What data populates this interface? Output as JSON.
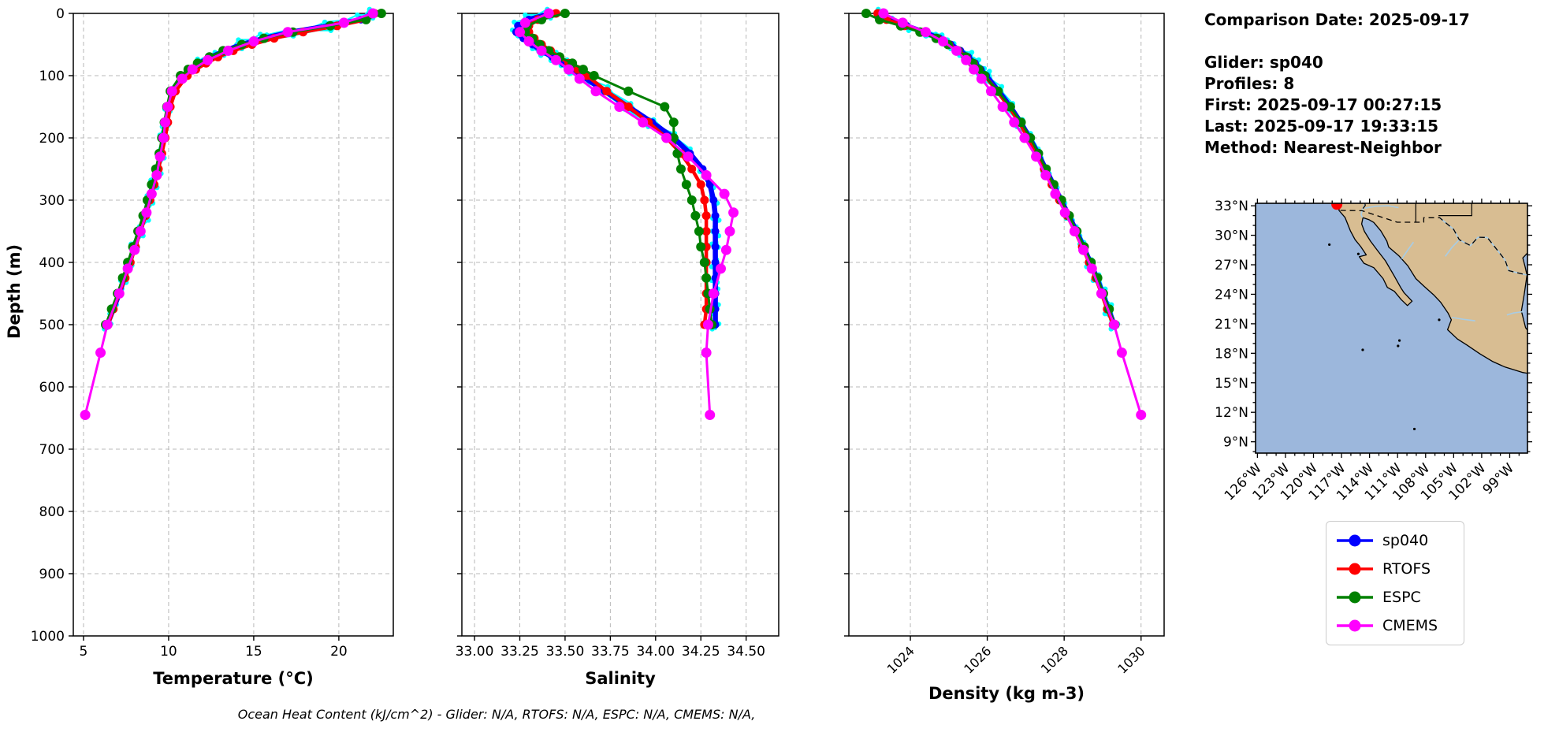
{
  "meta": {
    "title": "Comparison Date: 2025-09-17",
    "lines": [
      "Glider: sp040",
      "Profiles: 8",
      "First: 2025-09-17 00:27:15",
      "Last: 2025-09-17 19:33:15",
      "Method: Nearest-Neighbor"
    ]
  },
  "footnote": "Ocean Heat Content (kJ/cm^2) - Glider: N/A,  RTOFS: N/A,  ESPC: N/A,  CMEMS: N/A,",
  "legend": {
    "items": [
      {
        "label": "sp040",
        "color": "#0000ff"
      },
      {
        "label": "RTOFS",
        "color": "#ff0000"
      },
      {
        "label": "ESPC",
        "color": "#008000"
      },
      {
        "label": "CMEMS",
        "color": "#ff00ff"
      }
    ]
  },
  "chart_data": [
    {
      "type": "line",
      "id": "temperature",
      "xlabel": "Temperature (°C)",
      "ylabel": "Depth (m)",
      "xlim": [
        4.4,
        23.2
      ],
      "xticks": [
        5,
        10,
        15,
        20
      ],
      "xtick_labels": [
        "5",
        "10",
        "15",
        "20"
      ],
      "ylim": [
        0,
        1000
      ],
      "yticks": [
        0,
        100,
        200,
        300,
        400,
        500,
        600,
        700,
        800,
        900,
        1000
      ],
      "ytick_labels": [
        "0",
        "100",
        "200",
        "300",
        "400",
        "500",
        "600",
        "700",
        "800",
        "900",
        "1000"
      ],
      "show_ytick_labels": true,
      "rotate_xtick_labels": false,
      "grid": true,
      "series": [
        {
          "name": "glider raw profiles",
          "color": "#00ffff",
          "style": "raw",
          "same_as": "sp040",
          "in_legend": false
        },
        {
          "name": "sp040",
          "color": "#0000ff",
          "depths": [
            0,
            10,
            20,
            30,
            40,
            50,
            60,
            70,
            80,
            90,
            100,
            125,
            150,
            175,
            200,
            225,
            250,
            275,
            300,
            325,
            350,
            375,
            400,
            425,
            450,
            475,
            500
          ],
          "values": [
            22.0,
            21.3,
            19.4,
            17.2,
            15.6,
            14.3,
            13.3,
            12.5,
            11.8,
            11.3,
            10.85,
            10.2,
            10.0,
            9.85,
            9.7,
            9.55,
            9.35,
            9.1,
            8.85,
            8.6,
            8.3,
            8.0,
            7.7,
            7.4,
            7.1,
            6.75,
            6.4
          ]
        },
        {
          "name": "RTOFS",
          "color": "#ff0000",
          "depths": [
            0,
            10,
            20,
            30,
            40,
            50,
            60,
            70,
            80,
            90,
            100,
            125,
            150,
            175,
            200,
            225,
            250,
            275,
            300,
            325,
            350,
            375,
            400,
            425,
            450,
            475,
            500
          ],
          "values": [
            22.1,
            21.6,
            19.9,
            17.9,
            16.2,
            14.9,
            13.8,
            12.9,
            12.2,
            11.6,
            11.1,
            10.4,
            10.1,
            9.95,
            9.8,
            9.6,
            9.4,
            9.15,
            8.9,
            8.65,
            8.35,
            8.05,
            7.75,
            7.45,
            7.1,
            6.75,
            6.45
          ]
        },
        {
          "name": "ESPC",
          "color": "#008000",
          "depths": [
            0,
            10,
            20,
            30,
            40,
            50,
            60,
            70,
            80,
            90,
            100,
            125,
            150,
            175,
            200,
            225,
            250,
            275,
            300,
            325,
            350,
            375,
            400,
            425,
            450,
            475,
            500
          ],
          "values": [
            22.5,
            21.6,
            19.5,
            17.3,
            15.6,
            14.3,
            13.2,
            12.4,
            11.7,
            11.15,
            10.7,
            10.1,
            9.9,
            9.75,
            9.6,
            9.45,
            9.25,
            9.0,
            8.75,
            8.5,
            8.2,
            7.9,
            7.6,
            7.3,
            7.0,
            6.65,
            6.3
          ]
        },
        {
          "name": "CMEMS",
          "color": "#ff00ff",
          "depths": [
            0,
            15,
            30,
            45,
            60,
            75,
            90,
            105,
            125,
            150,
            175,
            200,
            230,
            260,
            290,
            320,
            350,
            380,
            410,
            450,
            500,
            545,
            645
          ],
          "values": [
            22.0,
            20.3,
            17.0,
            15.0,
            13.5,
            12.3,
            11.4,
            10.8,
            10.2,
            9.95,
            9.8,
            9.7,
            9.5,
            9.3,
            9.0,
            8.7,
            8.35,
            8.0,
            7.6,
            7.1,
            6.4,
            6.0,
            5.1
          ]
        }
      ]
    },
    {
      "type": "line",
      "id": "salinity",
      "xlabel": "Salinity",
      "xlim": [
        32.93,
        34.68
      ],
      "xticks": [
        33.0,
        33.25,
        33.5,
        33.75,
        34.0,
        34.25,
        34.5
      ],
      "xtick_labels": [
        "33.00",
        "33.25",
        "33.50",
        "33.75",
        "34.00",
        "34.25",
        "34.50"
      ],
      "ylim": [
        0,
        1000
      ],
      "yticks": [
        0,
        100,
        200,
        300,
        400,
        500,
        600,
        700,
        800,
        900,
        1000
      ],
      "show_ytick_labels": false,
      "rotate_xtick_labels": false,
      "grid": true,
      "series": [
        {
          "name": "glider raw profiles",
          "color": "#00ffff",
          "style": "raw",
          "same_as": "sp040",
          "in_legend": false
        },
        {
          "name": "sp040",
          "color": "#0000ff",
          "depths": [
            0,
            10,
            20,
            30,
            40,
            50,
            60,
            70,
            80,
            90,
            100,
            125,
            150,
            175,
            200,
            225,
            250,
            275,
            300,
            325,
            350,
            375,
            400,
            425,
            450,
            475,
            500
          ],
          "values": [
            33.42,
            33.3,
            33.24,
            33.23,
            33.27,
            33.32,
            33.37,
            33.43,
            33.49,
            33.54,
            33.59,
            33.72,
            33.85,
            33.98,
            34.1,
            34.19,
            34.26,
            34.3,
            34.32,
            34.33,
            34.33,
            34.33,
            34.33,
            34.33,
            34.33,
            34.33,
            34.33
          ]
        },
        {
          "name": "RTOFS",
          "color": "#ff0000",
          "depths": [
            0,
            10,
            20,
            30,
            40,
            50,
            60,
            70,
            80,
            90,
            100,
            125,
            150,
            175,
            200,
            225,
            250,
            275,
            300,
            325,
            350,
            375,
            400,
            425,
            450,
            475,
            500
          ],
          "values": [
            33.45,
            33.35,
            33.3,
            33.3,
            33.33,
            33.37,
            33.42,
            33.47,
            33.52,
            33.57,
            33.62,
            33.73,
            33.85,
            33.96,
            34.06,
            34.14,
            34.2,
            34.25,
            34.27,
            34.28,
            34.28,
            34.28,
            34.28,
            34.28,
            34.28,
            34.28,
            34.27
          ]
        },
        {
          "name": "ESPC",
          "color": "#008000",
          "depths": [
            0,
            10,
            20,
            30,
            40,
            50,
            60,
            70,
            80,
            90,
            100,
            125,
            150,
            175,
            200,
            225,
            250,
            275,
            300,
            325,
            350,
            375,
            400,
            425,
            450,
            475,
            500
          ],
          "values": [
            33.5,
            33.37,
            33.29,
            33.28,
            33.32,
            33.36,
            33.41,
            33.47,
            33.54,
            33.6,
            33.66,
            33.85,
            34.05,
            34.1,
            34.1,
            34.12,
            34.14,
            34.17,
            34.2,
            34.22,
            34.24,
            34.25,
            34.27,
            34.28,
            34.29,
            34.3,
            34.31
          ]
        },
        {
          "name": "CMEMS",
          "color": "#ff00ff",
          "depths": [
            0,
            15,
            30,
            45,
            60,
            75,
            90,
            105,
            125,
            150,
            175,
            200,
            230,
            260,
            290,
            320,
            350,
            380,
            410,
            450,
            500,
            545,
            645
          ],
          "values": [
            33.41,
            33.28,
            33.25,
            33.3,
            33.37,
            33.45,
            33.52,
            33.58,
            33.67,
            33.8,
            33.93,
            34.06,
            34.18,
            34.28,
            34.38,
            34.43,
            34.41,
            34.39,
            34.36,
            34.32,
            34.29,
            34.28,
            34.3
          ]
        }
      ]
    },
    {
      "type": "line",
      "id": "density",
      "xlabel": "Density (kg m-3)",
      "xlim": [
        1022.4,
        1030.6
      ],
      "xticks": [
        1024,
        1026,
        1028,
        1030
      ],
      "xtick_labels": [
        "1024",
        "1026",
        "1028",
        "1030"
      ],
      "ylim": [
        0,
        1000
      ],
      "yticks": [
        0,
        100,
        200,
        300,
        400,
        500,
        600,
        700,
        800,
        900,
        1000
      ],
      "show_ytick_labels": false,
      "rotate_xtick_labels": true,
      "grid": true,
      "series": [
        {
          "name": "glider raw profiles",
          "color": "#00ffff",
          "style": "raw",
          "same_as": "sp040",
          "in_legend": false
        },
        {
          "name": "sp040",
          "color": "#0000ff",
          "depths": [
            0,
            10,
            20,
            30,
            40,
            50,
            60,
            70,
            80,
            90,
            100,
            125,
            150,
            175,
            200,
            225,
            250,
            275,
            300,
            325,
            350,
            375,
            400,
            425,
            450,
            475,
            500
          ],
          "values": [
            1023.25,
            1023.45,
            1023.9,
            1024.35,
            1024.75,
            1025.05,
            1025.3,
            1025.5,
            1025.68,
            1025.83,
            1025.97,
            1026.3,
            1026.6,
            1026.87,
            1027.1,
            1027.32,
            1027.52,
            1027.72,
            1027.92,
            1028.12,
            1028.32,
            1028.5,
            1028.68,
            1028.85,
            1029.0,
            1029.15,
            1029.3
          ]
        },
        {
          "name": "RTOFS",
          "color": "#ff0000",
          "depths": [
            0,
            10,
            20,
            30,
            40,
            50,
            60,
            70,
            80,
            90,
            100,
            125,
            150,
            175,
            200,
            225,
            250,
            275,
            300,
            325,
            350,
            375,
            400,
            425,
            450,
            475,
            500
          ],
          "values": [
            1023.15,
            1023.38,
            1023.85,
            1024.3,
            1024.7,
            1025.0,
            1025.25,
            1025.46,
            1025.64,
            1025.79,
            1025.93,
            1026.26,
            1026.56,
            1026.83,
            1027.06,
            1027.28,
            1027.48,
            1027.68,
            1027.88,
            1028.08,
            1028.28,
            1028.47,
            1028.65,
            1028.82,
            1028.97,
            1029.12,
            1029.27
          ]
        },
        {
          "name": "ESPC",
          "color": "#008000",
          "depths": [
            0,
            10,
            20,
            30,
            40,
            50,
            60,
            70,
            80,
            90,
            100,
            125,
            150,
            175,
            200,
            225,
            250,
            275,
            300,
            325,
            350,
            375,
            400,
            425,
            450,
            475,
            500
          ],
          "values": [
            1022.85,
            1023.2,
            1023.75,
            1024.25,
            1024.67,
            1024.98,
            1025.23,
            1025.44,
            1025.62,
            1025.78,
            1025.93,
            1026.28,
            1026.6,
            1026.88,
            1027.12,
            1027.33,
            1027.53,
            1027.73,
            1027.93,
            1028.13,
            1028.33,
            1028.52,
            1028.7,
            1028.87,
            1029.02,
            1029.17,
            1029.32
          ]
        },
        {
          "name": "CMEMS",
          "color": "#ff00ff",
          "depths": [
            0,
            15,
            30,
            45,
            60,
            75,
            90,
            105,
            125,
            150,
            175,
            200,
            230,
            260,
            290,
            320,
            350,
            380,
            410,
            450,
            500,
            545,
            645
          ],
          "values": [
            1023.3,
            1023.8,
            1024.4,
            1024.85,
            1025.2,
            1025.45,
            1025.65,
            1025.85,
            1026.1,
            1026.4,
            1026.7,
            1026.97,
            1027.27,
            1027.52,
            1027.77,
            1028.02,
            1028.27,
            1028.5,
            1028.72,
            1028.97,
            1029.3,
            1029.5,
            1030.0
          ]
        }
      ]
    }
  ],
  "map": {
    "lat_tick_labels": [
      "33°N",
      "30°N",
      "27°N",
      "24°N",
      "21°N",
      "18°N",
      "15°N",
      "12°N",
      "9°N"
    ],
    "lat_tick_values": [
      33,
      30,
      27,
      24,
      21,
      18,
      15,
      12,
      9
    ],
    "lon_tick_labels": [
      "126°W",
      "123°W",
      "120°W",
      "117°W",
      "114°W",
      "111°W",
      "108°W",
      "105°W",
      "102°W",
      "99°W"
    ],
    "lon_tick_values": [
      -126,
      -123,
      -120,
      -117,
      -114,
      -111,
      -108,
      -105,
      -102,
      -99
    ],
    "xlim": [
      -126.2,
      -97.1
    ],
    "ylim": [
      7.85,
      33.25
    ],
    "ocean_color": "#9cb7dc",
    "land_color": "#d8bd92",
    "river_color": "#a9cce3",
    "glider_marker": {
      "color": "#ff0000",
      "lon": -117.5,
      "lat": 33.15
    }
  }
}
